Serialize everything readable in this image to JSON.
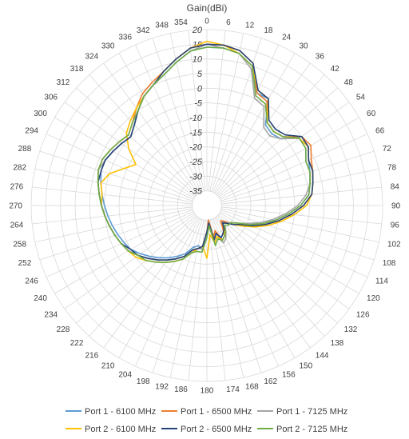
{
  "chart_data": {
    "type": "polar-line",
    "title": "Gain(dBi)",
    "angle_unit": "degrees",
    "angle_ticks": [
      0,
      6,
      12,
      18,
      24,
      30,
      36,
      42,
      48,
      54,
      60,
      66,
      72,
      78,
      84,
      90,
      96,
      102,
      108,
      114,
      120,
      126,
      132,
      138,
      144,
      150,
      156,
      162,
      168,
      174,
      180,
      186,
      192,
      198,
      204,
      210,
      216,
      222,
      228,
      234,
      240,
      246,
      252,
      258,
      264,
      270,
      276,
      282,
      288,
      294,
      300,
      306,
      312,
      318,
      324,
      330,
      336,
      342,
      348,
      354
    ],
    "r_ticks": [
      20,
      15,
      10,
      5,
      0,
      -5,
      -10,
      -15,
      -20,
      -25,
      -30,
      -35
    ],
    "r_range": [
      -40,
      20
    ],
    "legend_position": "bottom",
    "series": [
      {
        "name": "Port 1 - 6100 MHz",
        "color": "#5B9BD5",
        "angles": [
          0,
          6,
          12,
          18,
          24,
          30,
          36,
          42,
          48,
          54,
          60,
          66,
          72,
          78,
          84,
          90,
          96,
          102,
          108,
          114,
          120,
          126,
          132,
          138,
          144,
          150,
          156,
          162,
          168,
          174,
          180,
          186,
          192,
          198,
          204,
          210,
          216,
          222,
          228,
          234,
          240,
          246,
          252,
          258,
          264,
          270,
          276,
          282,
          288,
          294,
          300,
          306,
          312,
          318,
          324,
          330,
          336,
          342,
          348,
          354
        ],
        "values": [
          14,
          14,
          13,
          10,
          2,
          2,
          -6,
          -7,
          -6,
          0,
          0,
          -2,
          -3,
          -4,
          -5,
          -8,
          -12,
          -16,
          -20,
          -24,
          -28,
          -30,
          -31,
          -33,
          -30,
          -29,
          -28,
          -30,
          -28,
          -35,
          -30,
          -25,
          -26,
          -25,
          -22,
          -20,
          -18,
          -16,
          -14,
          -12,
          -10,
          -9,
          -8,
          -7,
          -6,
          -5,
          -4,
          -3,
          -2,
          -2,
          -3,
          -4,
          -5,
          -3,
          0,
          3,
          5,
          7,
          10,
          13
        ]
      },
      {
        "name": "Port 1 - 6500 MHz",
        "color": "#ED7D31",
        "angles": [
          0,
          6,
          12,
          18,
          24,
          30,
          36,
          42,
          48,
          54,
          60,
          66,
          72,
          78,
          84,
          90,
          96,
          102,
          108,
          114,
          120,
          126,
          132,
          138,
          144,
          150,
          156,
          162,
          168,
          174,
          180,
          186,
          192,
          198,
          204,
          210,
          216,
          222,
          228,
          234,
          240,
          246,
          252,
          258,
          264,
          270,
          276,
          282,
          288,
          294,
          300,
          306,
          312,
          318,
          324,
          330,
          336,
          342,
          348,
          354
        ],
        "values": [
          15,
          15,
          14,
          11,
          2,
          1,
          -5,
          -6,
          -5,
          0,
          1,
          -1,
          -2,
          -3,
          -4,
          -7,
          -11,
          -15,
          -19,
          -23,
          -27,
          -29,
          -32,
          -33,
          -31,
          -28,
          -27,
          -31,
          -29,
          -35,
          -31,
          -26,
          -25,
          -24,
          -21,
          -19,
          -17,
          -15,
          -13,
          -11,
          -9,
          -8,
          -7,
          -6,
          -5,
          -4,
          -3,
          -2,
          -1,
          -1,
          -2,
          -3,
          -4,
          -2,
          1,
          4,
          6,
          8,
          11,
          14
        ]
      },
      {
        "name": "Port 1 - 7125 MHz",
        "color": "#A5A5A5",
        "angles": [
          0,
          6,
          12,
          18,
          24,
          30,
          36,
          42,
          48,
          54,
          60,
          66,
          72,
          78,
          84,
          90,
          96,
          102,
          108,
          114,
          120,
          126,
          132,
          138,
          144,
          150,
          156,
          162,
          168,
          174,
          180,
          186,
          192,
          198,
          204,
          210,
          216,
          222,
          228,
          234,
          240,
          246,
          252,
          258,
          264,
          270,
          276,
          282,
          288,
          294,
          300,
          306,
          312,
          318,
          324,
          330,
          336,
          342,
          348,
          354
        ],
        "values": [
          15,
          14,
          13,
          9,
          0,
          -1,
          -7,
          -8,
          -6,
          -1,
          -1,
          -3,
          -3,
          -4,
          -6,
          -9,
          -13,
          -17,
          -21,
          -25,
          -28,
          -30,
          -31,
          -32,
          -29,
          -27,
          -26,
          -29,
          -27,
          -34,
          -30,
          -25,
          -25,
          -24,
          -21,
          -19,
          -17,
          -15,
          -13,
          -11,
          -9,
          -8,
          -7,
          -6,
          -5,
          -4,
          -3,
          -2,
          -1,
          -2,
          -3,
          -4,
          -5,
          -3,
          0,
          3,
          5,
          7,
          10,
          13
        ]
      },
      {
        "name": "Port 2 - 6100 MHz",
        "color": "#FFC000",
        "angles": [
          0,
          6,
          12,
          18,
          24,
          30,
          36,
          42,
          48,
          54,
          60,
          66,
          72,
          78,
          84,
          90,
          96,
          102,
          108,
          114,
          120,
          126,
          132,
          138,
          144,
          150,
          156,
          162,
          168,
          174,
          180,
          186,
          192,
          198,
          204,
          210,
          216,
          222,
          228,
          234,
          240,
          246,
          252,
          258,
          264,
          270,
          276,
          282,
          288,
          294,
          300,
          306,
          312,
          318,
          324,
          330,
          336,
          342,
          348,
          354
        ],
        "values": [
          16,
          15,
          13,
          10,
          3,
          2,
          -5,
          -6,
          -5,
          -1,
          0,
          -2,
          -2,
          -3,
          -4,
          -6,
          -10,
          -14,
          -18,
          -22,
          -26,
          -29,
          -31,
          -32,
          -30,
          -28,
          -27,
          -29,
          -27,
          -30,
          -22,
          -26,
          -25,
          -23,
          -20,
          -18,
          -16,
          -14,
          -12,
          -10,
          -9,
          -8,
          -7,
          -6,
          -5,
          -4,
          -4,
          -3,
          -5,
          -9,
          -12,
          -7,
          -3,
          -1,
          1,
          3,
          5,
          8,
          11,
          14
        ]
      },
      {
        "name": "Port 2 - 6500 MHz",
        "color": "#264478",
        "angles": [
          0,
          6,
          12,
          18,
          24,
          30,
          36,
          42,
          48,
          54,
          60,
          66,
          72,
          78,
          84,
          90,
          96,
          102,
          108,
          114,
          120,
          126,
          132,
          138,
          144,
          150,
          156,
          162,
          168,
          174,
          180,
          186,
          192,
          198,
          204,
          210,
          216,
          222,
          228,
          234,
          240,
          246,
          252,
          258,
          264,
          270,
          276,
          282,
          288,
          294,
          300,
          306,
          312,
          318,
          324,
          330,
          336,
          342,
          348,
          354
        ],
        "values": [
          15,
          15,
          14,
          11,
          3,
          2,
          -4,
          -5,
          -4,
          0,
          0,
          -2,
          -2,
          -3,
          -4,
          -7,
          -11,
          -15,
          -19,
          -23,
          -27,
          -29,
          -31,
          -32,
          -30,
          -29,
          -28,
          -30,
          -28,
          -34,
          -31,
          -26,
          -25,
          -24,
          -21,
          -19,
          -17,
          -15,
          -13,
          -11,
          -10,
          -8,
          -7,
          -6,
          -5,
          -4,
          -3,
          -2,
          -2,
          -2,
          -3,
          -4,
          -5,
          -3,
          0,
          3,
          5,
          8,
          11,
          14
        ]
      },
      {
        "name": "Port 2 - 7125 MHz",
        "color": "#70AD47",
        "angles": [
          0,
          6,
          12,
          18,
          24,
          30,
          36,
          42,
          48,
          54,
          60,
          66,
          72,
          78,
          84,
          90,
          96,
          102,
          108,
          114,
          120,
          126,
          132,
          138,
          144,
          150,
          156,
          162,
          168,
          174,
          180,
          186,
          192,
          198,
          204,
          210,
          216,
          222,
          228,
          234,
          240,
          246,
          252,
          258,
          264,
          270,
          276,
          282,
          288,
          294,
          300,
          306,
          312,
          318,
          324,
          330,
          336,
          342,
          348,
          354
        ],
        "values": [
          14,
          14,
          13,
          10,
          1,
          0,
          -5,
          -6,
          -5,
          -1,
          -1,
          -3,
          -3,
          -4,
          -5,
          -8,
          -12,
          -16,
          -20,
          -24,
          -28,
          -30,
          -30,
          -31,
          -29,
          -28,
          -27,
          -28,
          -26,
          -33,
          -29,
          -24,
          -24,
          -23,
          -20,
          -18,
          -16,
          -14,
          -12,
          -11,
          -9,
          -8,
          -7,
          -6,
          -5,
          -4,
          -3,
          -2,
          -1,
          -1,
          -2,
          -3,
          -4,
          -2,
          0,
          3,
          5,
          7,
          10,
          13
        ]
      }
    ]
  }
}
